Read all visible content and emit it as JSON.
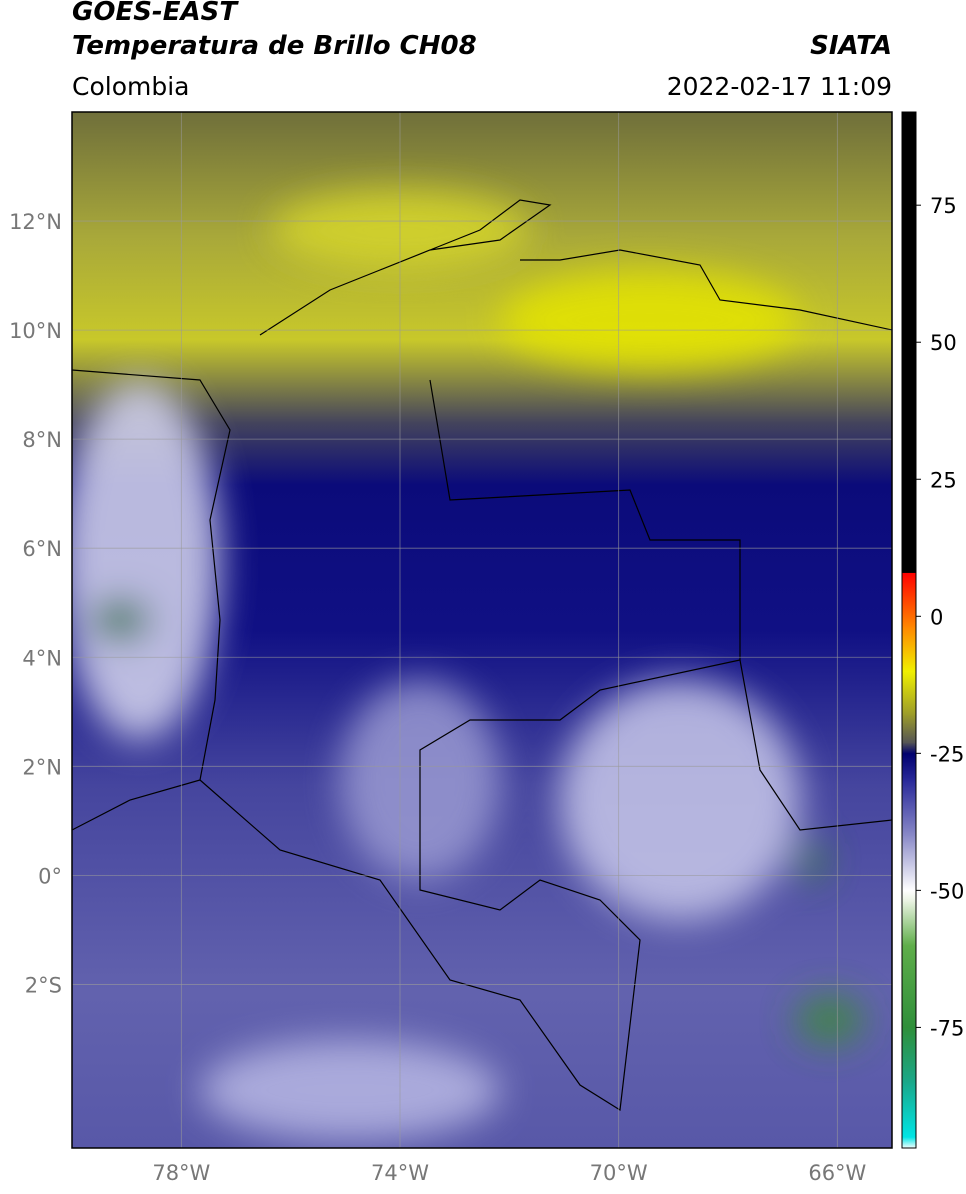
{
  "header": {
    "title": "GOES-EAST",
    "subtitle": "Temperatura de Brillo CH08",
    "source": "SIATA",
    "region": "Colombia",
    "datetime": "2022-02-17 11:09"
  },
  "map": {
    "xlim": [
      -80,
      -65
    ],
    "ylim": [
      -5,
      14
    ],
    "xticks": [
      {
        "value": -78,
        "label": "78°W"
      },
      {
        "value": -74,
        "label": "74°W"
      },
      {
        "value": -70,
        "label": "70°W"
      },
      {
        "value": -66,
        "label": "66°W"
      }
    ],
    "yticks": [
      {
        "value": 12,
        "label": "12°N"
      },
      {
        "value": 10,
        "label": "10°N"
      },
      {
        "value": 8,
        "label": "8°N"
      },
      {
        "value": 6,
        "label": "6°N"
      },
      {
        "value": 4,
        "label": "4°N"
      },
      {
        "value": 2,
        "label": "2°N"
      },
      {
        "value": 0,
        "label": "0°"
      },
      {
        "value": -2,
        "label": "2°S"
      }
    ],
    "grid": true
  },
  "colorbar": {
    "lim": [
      -97,
      92
    ],
    "ticks": [
      75,
      50,
      25,
      0,
      -25,
      -50,
      -75
    ],
    "stops": [
      {
        "value": -97,
        "color": "#ffffff"
      },
      {
        "value": -95,
        "color": "#00e5e5"
      },
      {
        "value": -85,
        "color": "#1aa88a"
      },
      {
        "value": -75,
        "color": "#2f8f3a"
      },
      {
        "value": -60,
        "color": "#5fae4a"
      },
      {
        "value": -52,
        "color": "#e8f2e0"
      },
      {
        "value": -50,
        "color": "#ffffff"
      },
      {
        "value": -40,
        "color": "#8a8ac8"
      },
      {
        "value": -30,
        "color": "#2a2a9a"
      },
      {
        "value": -25,
        "color": "#00006e"
      },
      {
        "value": -23,
        "color": "#555555"
      },
      {
        "value": -18,
        "color": "#9a9a2a"
      },
      {
        "value": -10,
        "color": "#f0f000"
      },
      {
        "value": -2,
        "color": "#ff8800"
      },
      {
        "value": 8,
        "color": "#ff0000"
      },
      {
        "value": 8.01,
        "color": "#000000"
      },
      {
        "value": 92,
        "color": "#000000"
      }
    ]
  }
}
